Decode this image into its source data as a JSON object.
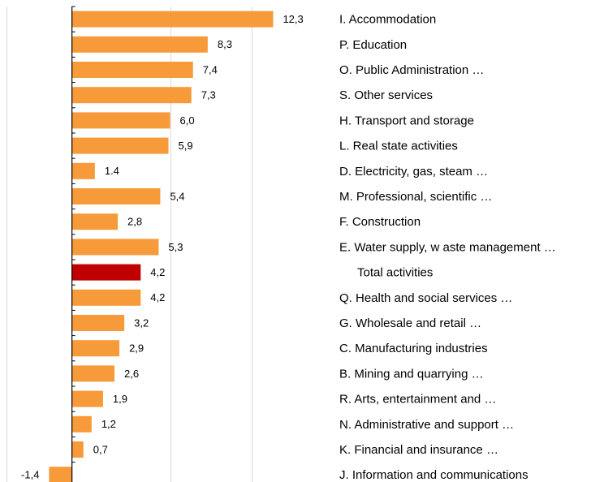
{
  "chart_data": {
    "type": "bar",
    "orientation": "horizontal",
    "categories": [
      "I. Accommodation",
      "P. Education",
      "O. Public Administration …",
      "S. Other services",
      "H. Transport and storage",
      "L. Real state activities",
      "D. Electricity, gas, steam …",
      "M. Professional, scientific …",
      "F. Construction",
      "E. Water supply, w aste management …",
      "Total activities",
      "Q. Health and social services …",
      "G. Wholesale and retail …",
      "C. Manufacturing industries",
      "B. Mining and quarrying …",
      "R. Arts, entertainment and …",
      "N. Administrative and support …",
      "K. Financial and insurance …",
      "J. Information and communications"
    ],
    "values": [
      12.3,
      8.3,
      7.4,
      7.3,
      6.0,
      5.9,
      1.4,
      5.4,
      2.8,
      5.3,
      4.2,
      4.2,
      3.2,
      2.9,
      2.6,
      1.9,
      1.2,
      0.7,
      -1.4
    ],
    "value_labels": [
      "12,3",
      "8,3",
      "7,4",
      "7,3",
      "6,0",
      "5,9",
      "1.4",
      "5,4",
      "2,8",
      "5,3",
      "4,2",
      "4,2",
      "3,2",
      "2,9",
      "2,6",
      "1,9",
      "1,2",
      "0,7",
      "-1,4"
    ],
    "colors": [
      "#f79a3a",
      "#f79a3a",
      "#f79a3a",
      "#f79a3a",
      "#f79a3a",
      "#f79a3a",
      "#f79a3a",
      "#f79a3a",
      "#f79a3a",
      "#f79a3a",
      "#c00000",
      "#f79a3a",
      "#f79a3a",
      "#f79a3a",
      "#f79a3a",
      "#f79a3a",
      "#f79a3a",
      "#f79a3a",
      "#f79a3a"
    ],
    "xlim": [
      -4.4,
      16
    ]
  }
}
